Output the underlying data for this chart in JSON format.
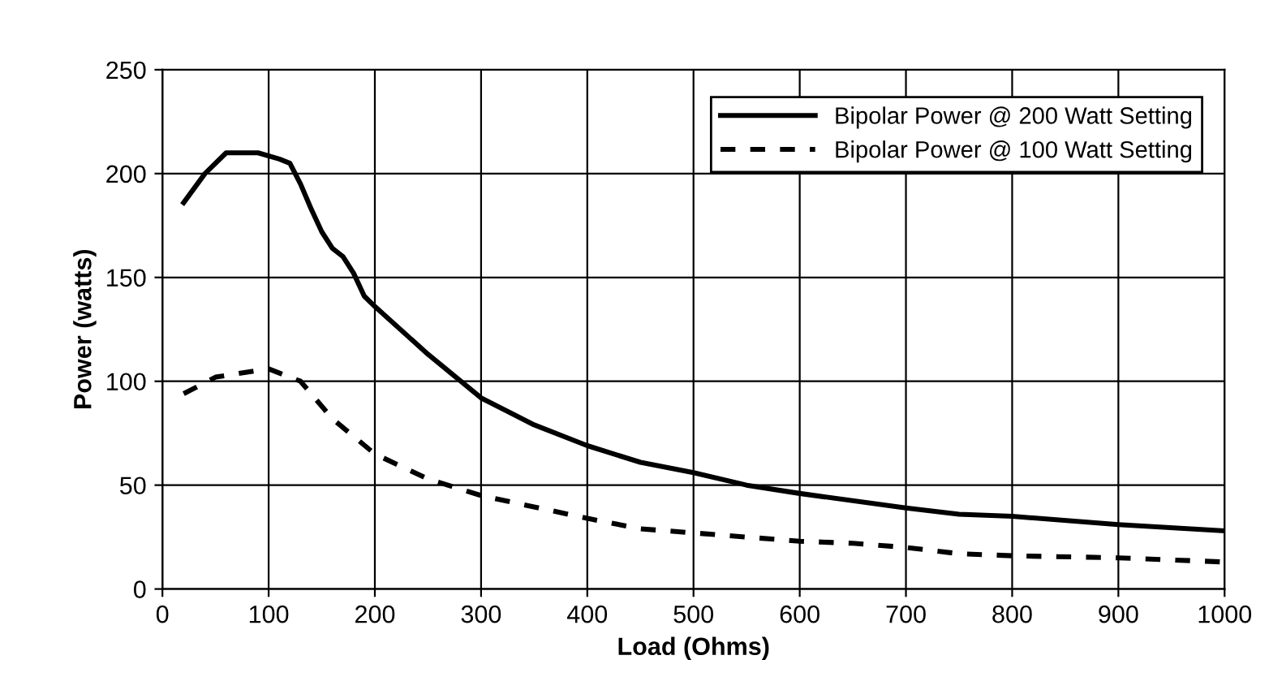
{
  "chart_data": {
    "type": "line",
    "xlabel": "Load (Ohms)",
    "ylabel": "Power (watts)",
    "xlim": [
      0,
      1000
    ],
    "xticks": [
      0,
      100,
      200,
      300,
      400,
      500,
      600,
      700,
      800,
      900,
      1000
    ],
    "ylim": [
      0,
      250
    ],
    "yticks": [
      0,
      50,
      100,
      150,
      200,
      250
    ],
    "grid": true,
    "legend": "top right",
    "marker": "none",
    "series": [
      {
        "name": "Bipolar Power @ 200 Watt Setting",
        "color": "#000000",
        "line_style": "solid",
        "x": [
          20,
          40,
          60,
          90,
          110,
          120,
          130,
          140,
          150,
          160,
          170,
          180,
          190,
          200,
          250,
          300,
          350,
          400,
          450,
          500,
          550,
          600,
          700,
          750,
          800,
          900,
          1000
        ],
        "values": [
          186,
          200,
          210,
          210,
          207,
          205,
          195,
          183,
          172,
          164,
          160,
          152,
          141,
          136,
          113,
          92,
          79,
          69,
          61,
          56,
          50,
          46,
          39,
          36,
          35,
          31,
          28
        ]
      },
      {
        "name": "Bipolar Power @ 100 Watt Setting",
        "color": "#000000",
        "line_style": "dashed",
        "x": [
          20,
          50,
          100,
          130,
          160,
          200,
          250,
          300,
          400,
          450,
          500,
          600,
          650,
          700,
          750,
          800,
          900,
          1000
        ],
        "values": [
          94,
          102,
          106,
          100,
          82,
          65,
          53,
          45,
          34,
          29,
          27,
          23,
          22,
          20,
          17,
          16,
          15,
          13
        ]
      }
    ]
  }
}
